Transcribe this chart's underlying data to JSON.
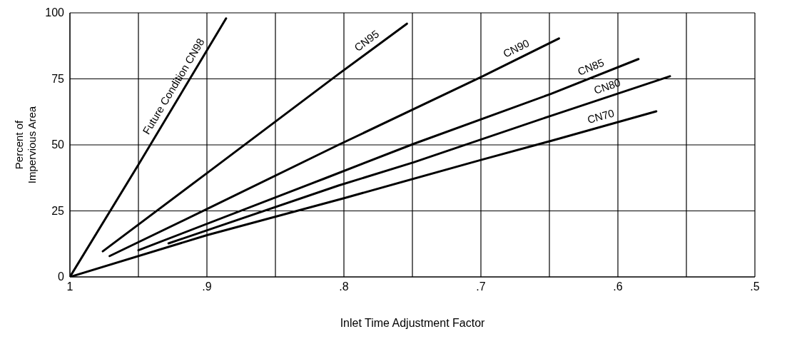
{
  "chart_data": {
    "type": "line",
    "xlabel": "Inlet Time Adjustment Factor",
    "ylabel": "Percent of\nImpervious Area",
    "xlim": [
      1,
      0.5
    ],
    "xticks": [
      {
        "value": 1,
        "label": "1"
      },
      {
        "value": 0.95,
        "label": null
      },
      {
        "value": 0.9,
        "label": ".9"
      },
      {
        "value": 0.85,
        "label": null
      },
      {
        "value": 0.8,
        "label": ".8"
      },
      {
        "value": 0.75,
        "label": null
      },
      {
        "value": 0.7,
        "label": ".7"
      },
      {
        "value": 0.65,
        "label": null
      },
      {
        "value": 0.6,
        "label": ".6"
      },
      {
        "value": 0.55,
        "label": null
      },
      {
        "value": 0.5,
        "label": ".5"
      }
    ],
    "ylim": [
      0,
      100
    ],
    "yticks": [
      0,
      25,
      50,
      75,
      100
    ],
    "grid": true,
    "marker": "none",
    "line_style": "solid",
    "series": [
      {
        "name": "Future Condition CN98",
        "color": "#000000",
        "x": [
          1,
          0.95,
          0.886
        ],
        "values": [
          0,
          42.5,
          97.9
        ]
      },
      {
        "name": "CN95",
        "color": "#000000",
        "x": [
          0.976,
          0.9,
          0.804,
          0.754
        ],
        "values": [
          9.7,
          39.3,
          76.8,
          95.9
        ]
      },
      {
        "name": "CN90",
        "color": "#000000",
        "x": [
          0.971,
          0.9,
          0.804,
          0.699,
          0.643
        ],
        "values": [
          7.9,
          25.7,
          50,
          75.9,
          90.3
        ]
      },
      {
        "name": "CN85",
        "color": "#000000",
        "x": [
          0.95,
          0.814,
          0.749,
          0.649,
          0.585
        ],
        "values": [
          10.1,
          37.3,
          50.4,
          69.3,
          82.5
        ]
      },
      {
        "name": "CN80",
        "color": "#000000",
        "x": [
          0.928,
          0.804,
          0.749,
          0.649,
          0.562
        ],
        "values": [
          12.7,
          34.6,
          43.4,
          61,
          76
        ]
      },
      {
        "name": "CN70",
        "color": "#000000",
        "x": [
          1,
          0.9,
          0.8,
          0.7,
          0.649,
          0.572
        ],
        "values": [
          0,
          15.8,
          29.8,
          44.3,
          51.5,
          62.7
        ]
      }
    ]
  }
}
